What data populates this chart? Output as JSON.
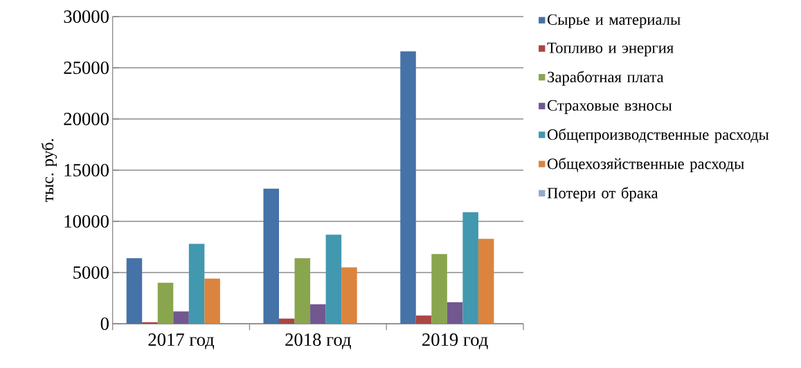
{
  "chart_data": {
    "type": "bar",
    "ylabel": "тыс. руб.",
    "categories": [
      "2017 год",
      "2018 год",
      "2019 год"
    ],
    "series": [
      {
        "name": "Сырье и материалы",
        "color": "#4572a7",
        "values": [
          6400,
          13200,
          26600
        ]
      },
      {
        "name": "Топливо и энергия",
        "color": "#aa4643",
        "values": [
          150,
          500,
          800
        ]
      },
      {
        "name": "Заработная плата",
        "color": "#89a54e",
        "values": [
          4000,
          6400,
          6800
        ]
      },
      {
        "name": "Страховые взносы",
        "color": "#71588f",
        "values": [
          1200,
          1900,
          2100
        ]
      },
      {
        "name": "Общепроизводственные расходы",
        "color": "#4198af",
        "values": [
          7800,
          8700,
          10900
        ]
      },
      {
        "name": "Общехозяйственные расходы",
        "color": "#db843d",
        "values": [
          4400,
          5500,
          8300
        ]
      },
      {
        "name": "Потери от брака",
        "color": "#93a9cf",
        "values": [
          0,
          0,
          0
        ]
      }
    ],
    "ylim": [
      0,
      30000
    ],
    "yticks": [
      0,
      5000,
      10000,
      15000,
      20000,
      25000,
      30000
    ],
    "grid": "y",
    "legend": "right"
  }
}
